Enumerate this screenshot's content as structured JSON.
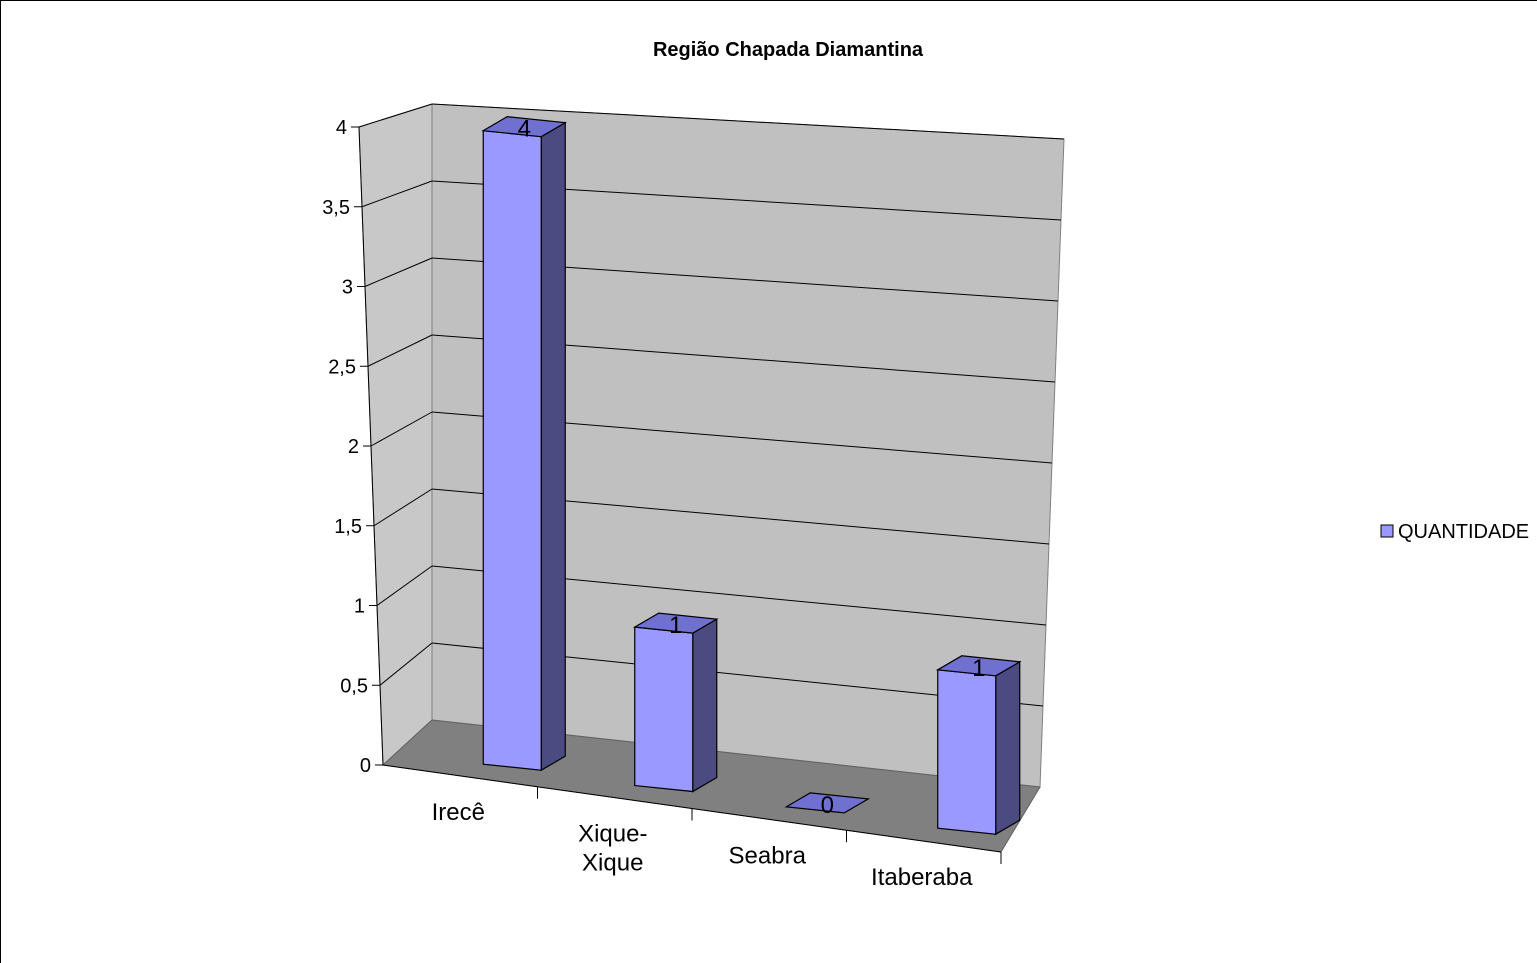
{
  "chart_data": {
    "type": "bar",
    "title": "Região Chapada Diamantina",
    "categories": [
      "Irecê",
      "Xique-Xique",
      "Seabra",
      "Itaberaba"
    ],
    "category_lines": [
      [
        "Irecê"
      ],
      [
        "Xique-",
        "Xique"
      ],
      [
        "Seabra"
      ],
      [
        "Itaberaba"
      ]
    ],
    "series": [
      {
        "name": "QUANTIDADE",
        "values": [
          4,
          1,
          0,
          1
        ]
      }
    ],
    "data_labels": [
      "4",
      "1",
      "0",
      "1"
    ],
    "y_ticks": [
      "0",
      "0,5",
      "1",
      "1,5",
      "2",
      "2,5",
      "3",
      "3,5",
      "4"
    ],
    "ylim": [
      0,
      4
    ],
    "grid": true,
    "three_d": true,
    "legend_position": "right",
    "colors": {
      "bar_front": "#9999ff",
      "bar_side": "#4b4b82",
      "bar_top": "#7070d0",
      "back_wall": "#c0c0c0",
      "side_wall": "#c8c8c8",
      "floor": "#808080",
      "gridline": "#000000"
    }
  }
}
